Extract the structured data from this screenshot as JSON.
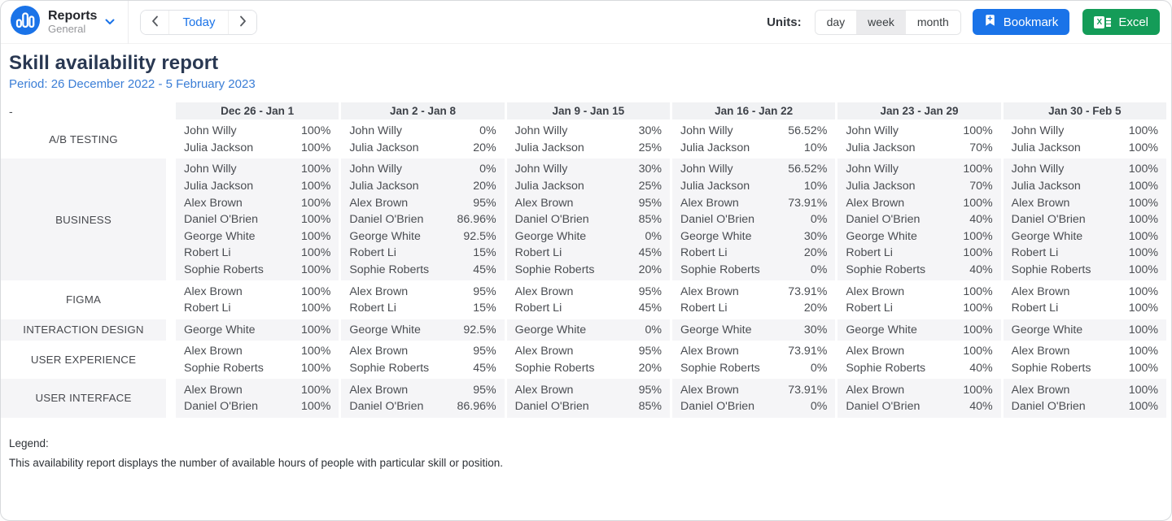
{
  "topbar": {
    "app": {
      "title": "Reports",
      "subtitle": "General"
    },
    "nav": {
      "today_label": "Today",
      "prev_icon": "chevron-left",
      "next_icon": "chevron-right"
    },
    "units": {
      "label": "Units:",
      "options": [
        "day",
        "week",
        "month"
      ],
      "selected": "week"
    },
    "bookmark_label": "Bookmark",
    "excel_label": "Excel",
    "excel_glyph": "X"
  },
  "report": {
    "title": "Skill availability report",
    "period": "Period: 26 December 2022 - 5 February 2023",
    "collapse_dash": "-"
  },
  "table": {
    "weeks": [
      "Dec 26 - Jan 1",
      "Jan 2 - Jan 8",
      "Jan 9 - Jan 15",
      "Jan 16 - Jan 22",
      "Jan 23 - Jan 29",
      "Jan 30 - Feb 5"
    ],
    "groups": [
      {
        "skill": "A/B TESTING",
        "people": [
          {
            "name": "John Willy",
            "values": [
              "100%",
              "0%",
              "30%",
              "56.52%",
              "100%",
              "100%"
            ]
          },
          {
            "name": "Julia Jackson",
            "values": [
              "100%",
              "20%",
              "25%",
              "10%",
              "70%",
              "100%"
            ]
          }
        ]
      },
      {
        "skill": "BUSINESS",
        "people": [
          {
            "name": "John Willy",
            "values": [
              "100%",
              "0%",
              "30%",
              "56.52%",
              "100%",
              "100%"
            ]
          },
          {
            "name": "Julia Jackson",
            "values": [
              "100%",
              "20%",
              "25%",
              "10%",
              "70%",
              "100%"
            ]
          },
          {
            "name": "Alex Brown",
            "values": [
              "100%",
              "95%",
              "95%",
              "73.91%",
              "100%",
              "100%"
            ]
          },
          {
            "name": "Daniel O'Brien",
            "values": [
              "100%",
              "86.96%",
              "85%",
              "0%",
              "40%",
              "100%"
            ]
          },
          {
            "name": "George White",
            "values": [
              "100%",
              "92.5%",
              "0%",
              "30%",
              "100%",
              "100%"
            ]
          },
          {
            "name": "Robert Li",
            "values": [
              "100%",
              "15%",
              "45%",
              "20%",
              "100%",
              "100%"
            ]
          },
          {
            "name": "Sophie Roberts",
            "values": [
              "100%",
              "45%",
              "20%",
              "0%",
              "40%",
              "100%"
            ]
          }
        ]
      },
      {
        "skill": "FIGMA",
        "people": [
          {
            "name": "Alex Brown",
            "values": [
              "100%",
              "95%",
              "95%",
              "73.91%",
              "100%",
              "100%"
            ]
          },
          {
            "name": "Robert Li",
            "values": [
              "100%",
              "15%",
              "45%",
              "20%",
              "100%",
              "100%"
            ]
          }
        ]
      },
      {
        "skill": "INTERACTION DESIGN",
        "people": [
          {
            "name": "George White",
            "values": [
              "100%",
              "92.5%",
              "0%",
              "30%",
              "100%",
              "100%"
            ]
          }
        ]
      },
      {
        "skill": "USER EXPERIENCE",
        "people": [
          {
            "name": "Alex Brown",
            "values": [
              "100%",
              "95%",
              "95%",
              "73.91%",
              "100%",
              "100%"
            ]
          },
          {
            "name": "Sophie Roberts",
            "values": [
              "100%",
              "45%",
              "20%",
              "0%",
              "40%",
              "100%"
            ]
          }
        ]
      },
      {
        "skill": "USER INTERFACE",
        "people": [
          {
            "name": "Alex Brown",
            "values": [
              "100%",
              "95%",
              "95%",
              "73.91%",
              "100%",
              "100%"
            ]
          },
          {
            "name": "Daniel O'Brien",
            "values": [
              "100%",
              "86.96%",
              "85%",
              "0%",
              "40%",
              "100%"
            ]
          }
        ]
      }
    ]
  },
  "legend": {
    "title": "Legend:",
    "text": "This availability report displays the number of available hours of people with particular skill or position."
  },
  "colors": {
    "accent_blue": "#1a73e8",
    "excel_green": "#149c58",
    "period_blue": "#3b7ed6",
    "stripe_gray": "#f5f5f7",
    "header_gray": "#f1f2f4"
  }
}
